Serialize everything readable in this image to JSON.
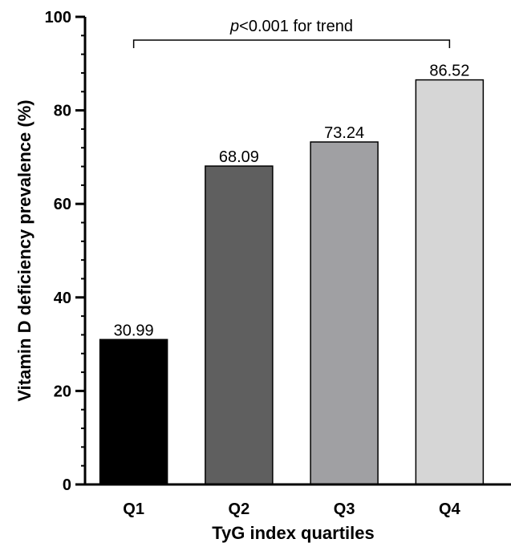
{
  "chart_data": {
    "type": "bar",
    "categories": [
      "Q1",
      "Q2",
      "Q3",
      "Q4"
    ],
    "values": [
      30.99,
      68.09,
      73.24,
      86.52
    ],
    "data_labels": [
      "30.99",
      "68.09",
      "73.24",
      "86.52"
    ],
    "colors": [
      "#000000",
      "#5f5f5f",
      "#a0a0a3",
      "#d6d6d6"
    ],
    "xlabel": "TyG index quartiles",
    "ylabel": "Vitamin D deficiency prevalence (%)",
    "ylim": [
      0,
      100
    ],
    "yticks": [
      0,
      20,
      40,
      60,
      80,
      100
    ],
    "yticks_text": [
      "0",
      "20",
      "40",
      "60",
      "80",
      "100"
    ],
    "grid": false,
    "annotation": {
      "p_italic": "p",
      "rest": "<0.001 for trend",
      "from": "Q1",
      "to": "Q4"
    }
  }
}
